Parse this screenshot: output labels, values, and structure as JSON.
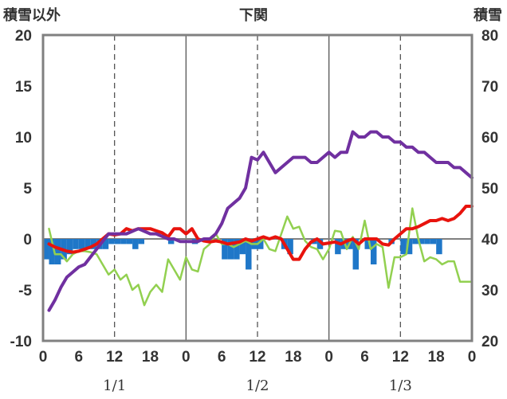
{
  "chart_data": {
    "type": "line",
    "title": "下関",
    "left_axis_label": "積雪以外",
    "right_axis_label": "積雪",
    "y_left_range": [
      -10,
      20
    ],
    "y_left_ticks": [
      "20",
      "15",
      "10",
      "5",
      "0",
      "-5",
      "-10"
    ],
    "y_right_range": [
      20,
      80
    ],
    "y_right_ticks": [
      "80",
      "70",
      "60",
      "50",
      "40",
      "30",
      "20"
    ],
    "x_range": [
      0,
      72
    ],
    "x_tick_labels": [
      "0",
      "6",
      "12",
      "18",
      "0",
      "6",
      "12",
      "18",
      "0",
      "6",
      "12",
      "18",
      "0"
    ],
    "date_labels": [
      {
        "hour": 12,
        "text": "1/1"
      },
      {
        "hour": 36,
        "text": "1/2"
      },
      {
        "hour": 60,
        "text": "1/3"
      }
    ],
    "grid": {
      "vertical_dashed_hours": [
        12,
        36,
        60
      ],
      "vertical_solid_hours": [
        24,
        48
      ],
      "horizontal": false
    },
    "series": [
      {
        "key": "precip",
        "kind": "bar",
        "color": "#1f77c8",
        "axis": "left",
        "x": [
          1,
          2,
          3,
          4,
          5,
          6,
          7,
          8,
          9,
          10,
          11,
          12,
          13,
          14,
          15,
          16,
          17,
          18,
          19,
          20,
          21,
          22,
          23,
          24,
          25,
          26,
          27,
          28,
          29,
          30,
          31,
          32,
          33,
          34,
          35,
          36,
          37,
          38,
          39,
          40,
          41,
          42,
          43,
          44,
          45,
          46,
          47,
          48,
          49,
          50,
          51,
          52,
          53,
          54,
          55,
          56,
          57,
          58,
          59,
          60,
          61,
          62,
          63,
          64,
          65,
          66,
          67,
          68,
          69,
          70,
          71,
          72
        ],
        "values": [
          -2,
          -2.5,
          -2.5,
          -2,
          -1.5,
          -1,
          -1,
          -1,
          -1,
          -1,
          -1,
          -0.5,
          -0.5,
          -0.5,
          -0.5,
          -1,
          -0.5,
          0,
          0,
          0,
          0,
          -0.5,
          0,
          0,
          0,
          -0.5,
          0,
          0,
          0,
          0,
          -2,
          -2,
          -2,
          -1.5,
          -3,
          -1,
          -1,
          0,
          0,
          0,
          -1,
          -1.5,
          0,
          0,
          0,
          -0.5,
          -1,
          0,
          0,
          -1.5,
          -1,
          -1,
          -3,
          0,
          -1,
          -2.5,
          0,
          0,
          -0.5,
          0,
          -1.5,
          -1.5,
          -0.5,
          -0.5,
          -0.5,
          -0.5,
          -1.5,
          0,
          0,
          0,
          0,
          0
        ]
      },
      {
        "key": "snow_depth",
        "kind": "line",
        "color": "#7030a0",
        "axis": "right",
        "x": [
          1,
          2,
          3,
          4,
          5,
          6,
          7,
          8,
          9,
          10,
          11,
          12,
          13,
          14,
          15,
          16,
          17,
          18,
          19,
          20,
          21,
          22,
          23,
          24,
          25,
          26,
          27,
          28,
          29,
          30,
          31,
          32,
          33,
          34,
          35,
          36,
          37,
          38,
          39,
          40,
          41,
          42,
          43,
          44,
          45,
          46,
          47,
          48,
          49,
          50,
          51,
          52,
          53,
          54,
          55,
          56,
          57,
          58,
          59,
          60,
          61,
          62,
          63,
          64,
          65,
          66,
          67,
          68,
          69,
          70,
          71,
          72
        ],
        "values": [
          26,
          28,
          30.5,
          32.5,
          33.5,
          34.5,
          35,
          36.5,
          38,
          39.5,
          41,
          41,
          41,
          41,
          41.5,
          42,
          41.5,
          41,
          41,
          40.5,
          40,
          40,
          39.5,
          39.5,
          39.5,
          39.5,
          40,
          40,
          41,
          43,
          46,
          47,
          48,
          50,
          56,
          55.5,
          57,
          55,
          53,
          54,
          55,
          56,
          56,
          56,
          55,
          55,
          56,
          57,
          56,
          57,
          57,
          61,
          60,
          60,
          61,
          61,
          60,
          60,
          59,
          59,
          58,
          58,
          57,
          57,
          56,
          55,
          55,
          55,
          54,
          54,
          53,
          52
        ]
      },
      {
        "key": "red_series",
        "kind": "line",
        "color": "#e8130d",
        "axis": "left",
        "x": [
          1,
          2,
          3,
          4,
          5,
          6,
          7,
          8,
          9,
          10,
          11,
          12,
          13,
          14,
          15,
          16,
          17,
          18,
          19,
          20,
          21,
          22,
          23,
          24,
          25,
          26,
          27,
          28,
          29,
          30,
          31,
          32,
          33,
          34,
          35,
          36,
          37,
          38,
          39,
          40,
          41,
          42,
          43,
          44,
          45,
          46,
          47,
          48,
          49,
          50,
          51,
          52,
          53,
          54,
          55,
          56,
          57,
          58,
          59,
          60,
          61,
          62,
          63,
          64,
          65,
          66,
          67,
          68,
          69,
          70,
          71,
          72
        ],
        "values": [
          -0.5,
          -0.8,
          -1,
          -1.2,
          -1.3,
          -1.2,
          -1,
          -0.8,
          -0.5,
          0,
          0.5,
          0.4,
          0.5,
          1,
          0.8,
          1,
          1,
          1,
          0.8,
          0.6,
          0.2,
          1,
          1,
          0.5,
          1,
          0,
          -0.2,
          -0.3,
          -0.2,
          -0.3,
          -0.5,
          -0.4,
          -0.3,
          0,
          -0.2,
          0,
          0.2,
          0,
          0.2,
          0,
          -1,
          -2,
          -2,
          -1,
          -0.3,
          0,
          -0.5,
          -0.4,
          -0.3,
          -0.5,
          -0.2,
          0,
          -0.5,
          0,
          0,
          0,
          -0.5,
          -0.6,
          0,
          0.5,
          1,
          1,
          1.2,
          1.5,
          1.8,
          1.8,
          2,
          1.8,
          2,
          2.5,
          3.2,
          3.2
        ]
      },
      {
        "key": "green_series",
        "kind": "line",
        "color": "#92d050",
        "axis": "left",
        "x": [
          1,
          2,
          3,
          4,
          5,
          6,
          7,
          8,
          9,
          10,
          11,
          12,
          13,
          14,
          15,
          16,
          17,
          18,
          19,
          20,
          21,
          22,
          23,
          24,
          25,
          26,
          27,
          28,
          29,
          30,
          31,
          32,
          33,
          34,
          35,
          36,
          37,
          38,
          39,
          40,
          41,
          42,
          43,
          44,
          45,
          46,
          47,
          48,
          49,
          50,
          51,
          52,
          53,
          54,
          55,
          56,
          57,
          58,
          59,
          60,
          61,
          62,
          63,
          64,
          65,
          66,
          67,
          68,
          69,
          70,
          71,
          72
        ],
        "values": [
          1,
          -1.5,
          -1.5,
          -2.2,
          -1.5,
          -1.2,
          -1.2,
          -1.3,
          -1.5,
          -2.5,
          -3.5,
          -3,
          -4,
          -3.5,
          -5,
          -4.5,
          -6.5,
          -5.2,
          -4.5,
          -5.2,
          -2,
          -3,
          -4,
          -1.8,
          -3,
          -3.2,
          -1,
          -0.5,
          0.5,
          -0.5,
          -0.5,
          -0.8,
          -0.5,
          -0.2,
          -0.5,
          -0.5,
          0,
          -1,
          -1.2,
          0.5,
          2.2,
          1,
          1.2,
          -0.2,
          -0.8,
          -1,
          -2,
          -1,
          0.8,
          0.7,
          -1,
          0.2,
          -1,
          1.8,
          -1,
          -0.5,
          -0.8,
          -4.8,
          -1.8,
          -1.8,
          -1.5,
          3,
          0,
          -2.2,
          -1.8,
          -2,
          -2.5,
          -2.2,
          -2.2,
          -4.2,
          -4.2,
          -4.2
        ]
      }
    ]
  }
}
